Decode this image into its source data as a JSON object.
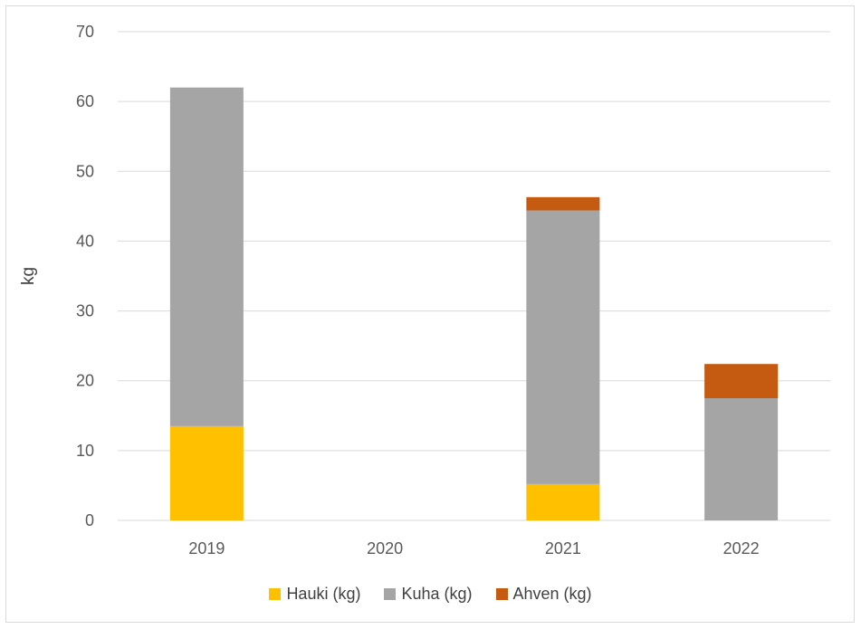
{
  "chart_data": {
    "type": "bar",
    "stacked": true,
    "categories": [
      "2019",
      "2020",
      "2021",
      "2022"
    ],
    "series": [
      {
        "name": "Hauki (kg)",
        "color": "#ffc000",
        "values": [
          13.5,
          0,
          5.2,
          0
        ]
      },
      {
        "name": "Kuha (kg)",
        "color": "#a5a5a5",
        "values": [
          48.5,
          0,
          39.2,
          17.5
        ]
      },
      {
        "name": "Ahven (kg)",
        "color": "#c55a11",
        "values": [
          0,
          0,
          1.9,
          4.9
        ]
      }
    ],
    "ylabel": "kg",
    "ylim": [
      0,
      70
    ],
    "yticks": [
      "0",
      "10",
      "20",
      "30",
      "40",
      "50",
      "60",
      "70"
    ],
    "grid": true,
    "legend_position": "bottom"
  }
}
